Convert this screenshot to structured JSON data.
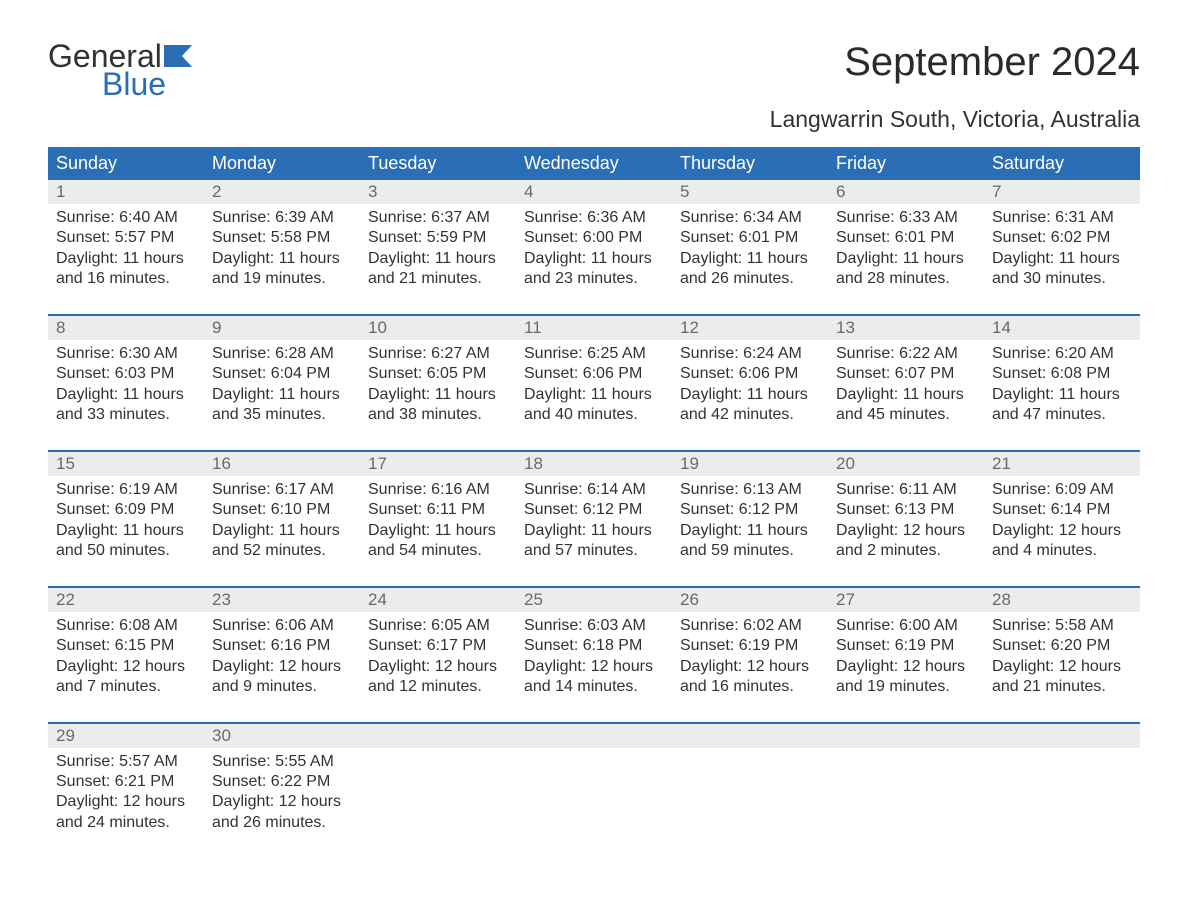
{
  "logo": {
    "word1": "General",
    "word2": "Blue"
  },
  "title": "September 2024",
  "subtitle": "Langwarrin South, Victoria, Australia",
  "colors": {
    "header_bg": "#2a6eb6",
    "header_text": "#ffffff",
    "daynum_bg": "#ececec",
    "daynum_text": "#6a6a6a",
    "text": "#323232",
    "page_bg": "#ffffff",
    "logo_blue": "#2a6eb6"
  },
  "fontsize": {
    "title": 40,
    "subtitle": 23,
    "dayhead": 18,
    "daynum": 17,
    "body": 16,
    "logo": 32
  },
  "weekdays": [
    "Sunday",
    "Monday",
    "Tuesday",
    "Wednesday",
    "Thursday",
    "Friday",
    "Saturday"
  ],
  "weeks": [
    [
      {
        "n": "1",
        "sunrise": "6:40 AM",
        "sunset": "5:57 PM",
        "dl1": "Daylight: 11 hours",
        "dl2": "and 16 minutes."
      },
      {
        "n": "2",
        "sunrise": "6:39 AM",
        "sunset": "5:58 PM",
        "dl1": "Daylight: 11 hours",
        "dl2": "and 19 minutes."
      },
      {
        "n": "3",
        "sunrise": "6:37 AM",
        "sunset": "5:59 PM",
        "dl1": "Daylight: 11 hours",
        "dl2": "and 21 minutes."
      },
      {
        "n": "4",
        "sunrise": "6:36 AM",
        "sunset": "6:00 PM",
        "dl1": "Daylight: 11 hours",
        "dl2": "and 23 minutes."
      },
      {
        "n": "5",
        "sunrise": "6:34 AM",
        "sunset": "6:01 PM",
        "dl1": "Daylight: 11 hours",
        "dl2": "and 26 minutes."
      },
      {
        "n": "6",
        "sunrise": "6:33 AM",
        "sunset": "6:01 PM",
        "dl1": "Daylight: 11 hours",
        "dl2": "and 28 minutes."
      },
      {
        "n": "7",
        "sunrise": "6:31 AM",
        "sunset": "6:02 PM",
        "dl1": "Daylight: 11 hours",
        "dl2": "and 30 minutes."
      }
    ],
    [
      {
        "n": "8",
        "sunrise": "6:30 AM",
        "sunset": "6:03 PM",
        "dl1": "Daylight: 11 hours",
        "dl2": "and 33 minutes."
      },
      {
        "n": "9",
        "sunrise": "6:28 AM",
        "sunset": "6:04 PM",
        "dl1": "Daylight: 11 hours",
        "dl2": "and 35 minutes."
      },
      {
        "n": "10",
        "sunrise": "6:27 AM",
        "sunset": "6:05 PM",
        "dl1": "Daylight: 11 hours",
        "dl2": "and 38 minutes."
      },
      {
        "n": "11",
        "sunrise": "6:25 AM",
        "sunset": "6:06 PM",
        "dl1": "Daylight: 11 hours",
        "dl2": "and 40 minutes."
      },
      {
        "n": "12",
        "sunrise": "6:24 AM",
        "sunset": "6:06 PM",
        "dl1": "Daylight: 11 hours",
        "dl2": "and 42 minutes."
      },
      {
        "n": "13",
        "sunrise": "6:22 AM",
        "sunset": "6:07 PM",
        "dl1": "Daylight: 11 hours",
        "dl2": "and 45 minutes."
      },
      {
        "n": "14",
        "sunrise": "6:20 AM",
        "sunset": "6:08 PM",
        "dl1": "Daylight: 11 hours",
        "dl2": "and 47 minutes."
      }
    ],
    [
      {
        "n": "15",
        "sunrise": "6:19 AM",
        "sunset": "6:09 PM",
        "dl1": "Daylight: 11 hours",
        "dl2": "and 50 minutes."
      },
      {
        "n": "16",
        "sunrise": "6:17 AM",
        "sunset": "6:10 PM",
        "dl1": "Daylight: 11 hours",
        "dl2": "and 52 minutes."
      },
      {
        "n": "17",
        "sunrise": "6:16 AM",
        "sunset": "6:11 PM",
        "dl1": "Daylight: 11 hours",
        "dl2": "and 54 minutes."
      },
      {
        "n": "18",
        "sunrise": "6:14 AM",
        "sunset": "6:12 PM",
        "dl1": "Daylight: 11 hours",
        "dl2": "and 57 minutes."
      },
      {
        "n": "19",
        "sunrise": "6:13 AM",
        "sunset": "6:12 PM",
        "dl1": "Daylight: 11 hours",
        "dl2": "and 59 minutes."
      },
      {
        "n": "20",
        "sunrise": "6:11 AM",
        "sunset": "6:13 PM",
        "dl1": "Daylight: 12 hours",
        "dl2": "and 2 minutes."
      },
      {
        "n": "21",
        "sunrise": "6:09 AM",
        "sunset": "6:14 PM",
        "dl1": "Daylight: 12 hours",
        "dl2": "and 4 minutes."
      }
    ],
    [
      {
        "n": "22",
        "sunrise": "6:08 AM",
        "sunset": "6:15 PM",
        "dl1": "Daylight: 12 hours",
        "dl2": "and 7 minutes."
      },
      {
        "n": "23",
        "sunrise": "6:06 AM",
        "sunset": "6:16 PM",
        "dl1": "Daylight: 12 hours",
        "dl2": "and 9 minutes."
      },
      {
        "n": "24",
        "sunrise": "6:05 AM",
        "sunset": "6:17 PM",
        "dl1": "Daylight: 12 hours",
        "dl2": "and 12 minutes."
      },
      {
        "n": "25",
        "sunrise": "6:03 AM",
        "sunset": "6:18 PM",
        "dl1": "Daylight: 12 hours",
        "dl2": "and 14 minutes."
      },
      {
        "n": "26",
        "sunrise": "6:02 AM",
        "sunset": "6:19 PM",
        "dl1": "Daylight: 12 hours",
        "dl2": "and 16 minutes."
      },
      {
        "n": "27",
        "sunrise": "6:00 AM",
        "sunset": "6:19 PM",
        "dl1": "Daylight: 12 hours",
        "dl2": "and 19 minutes."
      },
      {
        "n": "28",
        "sunrise": "5:58 AM",
        "sunset": "6:20 PM",
        "dl1": "Daylight: 12 hours",
        "dl2": "and 21 minutes."
      }
    ],
    [
      {
        "n": "29",
        "sunrise": "5:57 AM",
        "sunset": "6:21 PM",
        "dl1": "Daylight: 12 hours",
        "dl2": "and 24 minutes."
      },
      {
        "n": "30",
        "sunrise": "5:55 AM",
        "sunset": "6:22 PM",
        "dl1": "Daylight: 12 hours",
        "dl2": "and 26 minutes."
      },
      null,
      null,
      null,
      null,
      null
    ]
  ]
}
